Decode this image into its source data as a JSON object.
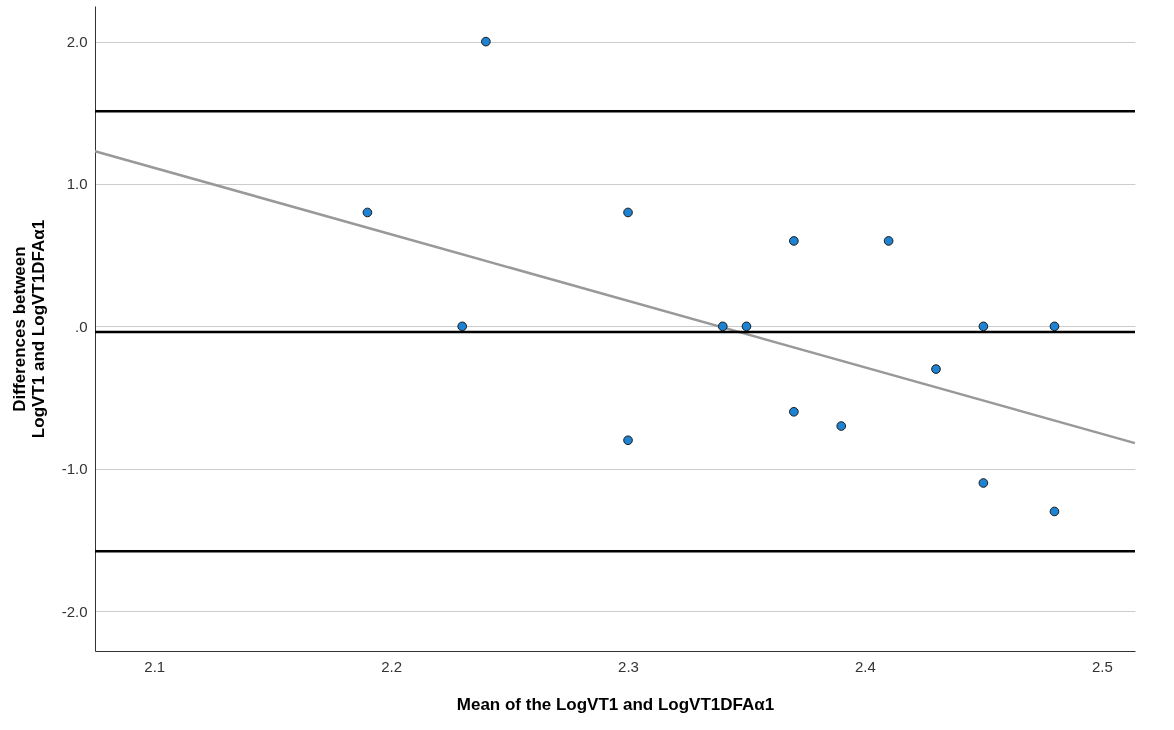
{
  "chart_data": {
    "type": "scatter",
    "xlabel": "Mean of the LogVT1 and LogVT1DFAα1",
    "ylabel": "Differences between LogVT1 and LogVT1DFAα1",
    "xlim": [
      2.075,
      2.514
    ],
    "xticks": [
      2.1,
      2.2,
      2.3,
      2.4,
      2.5
    ],
    "ylim": [
      -2.28,
      2.25
    ],
    "yticks": [
      {
        "value": 2,
        "label": "2.0"
      },
      {
        "value": 1,
        "label": "1.0"
      },
      {
        "value": 0,
        "label": ".0"
      },
      {
        "value": -1,
        "label": "-1.0"
      },
      {
        "value": -2,
        "label": "-2.0"
      }
    ],
    "grid": "y",
    "series": [
      {
        "marker": "circle",
        "color": "#1f83d4",
        "x": [
          2.24,
          2.19,
          2.3,
          2.37,
          2.41,
          2.23,
          2.34,
          2.35,
          2.45,
          2.48,
          2.43,
          2.37,
          2.39,
          2.3,
          2.45,
          2.48
        ],
        "values": [
          2.0,
          0.8,
          0.8,
          0.6,
          0.6,
          0,
          0,
          0,
          0,
          0,
          -0.3,
          -0.6,
          -0.7,
          -0.8,
          -1.1,
          -1.3
        ]
      },
      {
        "type": "line",
        "marker": "none",
        "color": "#999999",
        "line_style": "solid",
        "x": [
          2.075,
          2.514
        ],
        "values": [
          1.23,
          -0.82
        ]
      }
    ],
    "ref_lines": [
      {
        "axis": "y",
        "value": 1.51,
        "color": "#000000"
      },
      {
        "axis": "y",
        "value": -0.04,
        "color": "#000000"
      },
      {
        "axis": "y",
        "value": -1.58,
        "color": "#000000"
      }
    ]
  }
}
